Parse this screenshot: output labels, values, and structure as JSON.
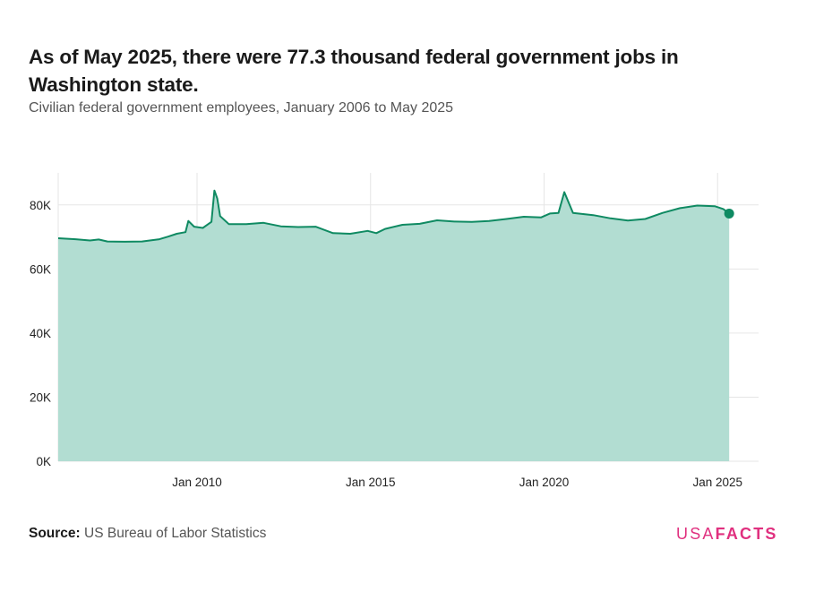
{
  "title": "As of May 2025, there were 77.3 thousand federal government jobs in Washington state.",
  "subtitle": "Civilian federal government employees, January 2006 to May 2025",
  "source": {
    "label": "Source:",
    "text": "US Bureau of Labor Statistics"
  },
  "logo": {
    "usa": "USA",
    "facts": "FACTS"
  },
  "colors": {
    "line": "#0f8a62",
    "area": "#b2ddd2",
    "grid": "#e6e6e6",
    "logo": "#e0307f"
  },
  "chart_data": {
    "type": "area",
    "x_unit": "month",
    "x_range": [
      "2006-01",
      "2025-05"
    ],
    "ylim": [
      0,
      90000
    ],
    "y_ticks": [
      0,
      20000,
      40000,
      60000,
      80000
    ],
    "y_tick_labels": [
      "0K",
      "20K",
      "40K",
      "60K",
      "80K"
    ],
    "x_ticks": [
      "2010-01",
      "2015-01",
      "2020-01",
      "2025-01"
    ],
    "x_tick_labels": [
      "Jan 2010",
      "Jan 2015",
      "Jan 2020",
      "Jan 2025"
    ],
    "grid": true,
    "highlight_last_point": true,
    "series": [
      {
        "points": [
          [
            "2006-01",
            69600
          ],
          [
            "2006-07",
            69300
          ],
          [
            "2006-12",
            68900
          ],
          [
            "2007-03",
            69200
          ],
          [
            "2007-06",
            68600
          ],
          [
            "2007-12",
            68500
          ],
          [
            "2008-06",
            68600
          ],
          [
            "2008-12",
            69300
          ],
          [
            "2009-03",
            70100
          ],
          [
            "2009-06",
            71000
          ],
          [
            "2009-09",
            71500
          ],
          [
            "2009-10",
            75000
          ],
          [
            "2009-12",
            73200
          ],
          [
            "2010-03",
            72800
          ],
          [
            "2010-06",
            74700
          ],
          [
            "2010-07",
            84500
          ],
          [
            "2010-08",
            82000
          ],
          [
            "2010-09",
            76500
          ],
          [
            "2010-12",
            74000
          ],
          [
            "2011-06",
            74000
          ],
          [
            "2011-12",
            74400
          ],
          [
            "2012-06",
            73300
          ],
          [
            "2012-12",
            73100
          ],
          [
            "2013-06",
            73200
          ],
          [
            "2013-12",
            71200
          ],
          [
            "2014-06",
            71000
          ],
          [
            "2014-12",
            71900
          ],
          [
            "2015-03",
            71200
          ],
          [
            "2015-06",
            72500
          ],
          [
            "2015-12",
            73800
          ],
          [
            "2016-06",
            74100
          ],
          [
            "2016-12",
            75200
          ],
          [
            "2017-06",
            74800
          ],
          [
            "2017-12",
            74700
          ],
          [
            "2018-06",
            75000
          ],
          [
            "2018-12",
            75600
          ],
          [
            "2019-06",
            76300
          ],
          [
            "2019-12",
            76100
          ],
          [
            "2020-03",
            77300
          ],
          [
            "2020-06",
            77500
          ],
          [
            "2020-08",
            84000
          ],
          [
            "2020-11",
            77500
          ],
          [
            "2021-06",
            76800
          ],
          [
            "2021-12",
            75800
          ],
          [
            "2022-06",
            75100
          ],
          [
            "2022-12",
            75600
          ],
          [
            "2023-06",
            77500
          ],
          [
            "2023-12",
            79000
          ],
          [
            "2024-06",
            79800
          ],
          [
            "2024-12",
            79600
          ],
          [
            "2025-03",
            78700
          ],
          [
            "2025-05",
            77300
          ]
        ]
      }
    ]
  }
}
